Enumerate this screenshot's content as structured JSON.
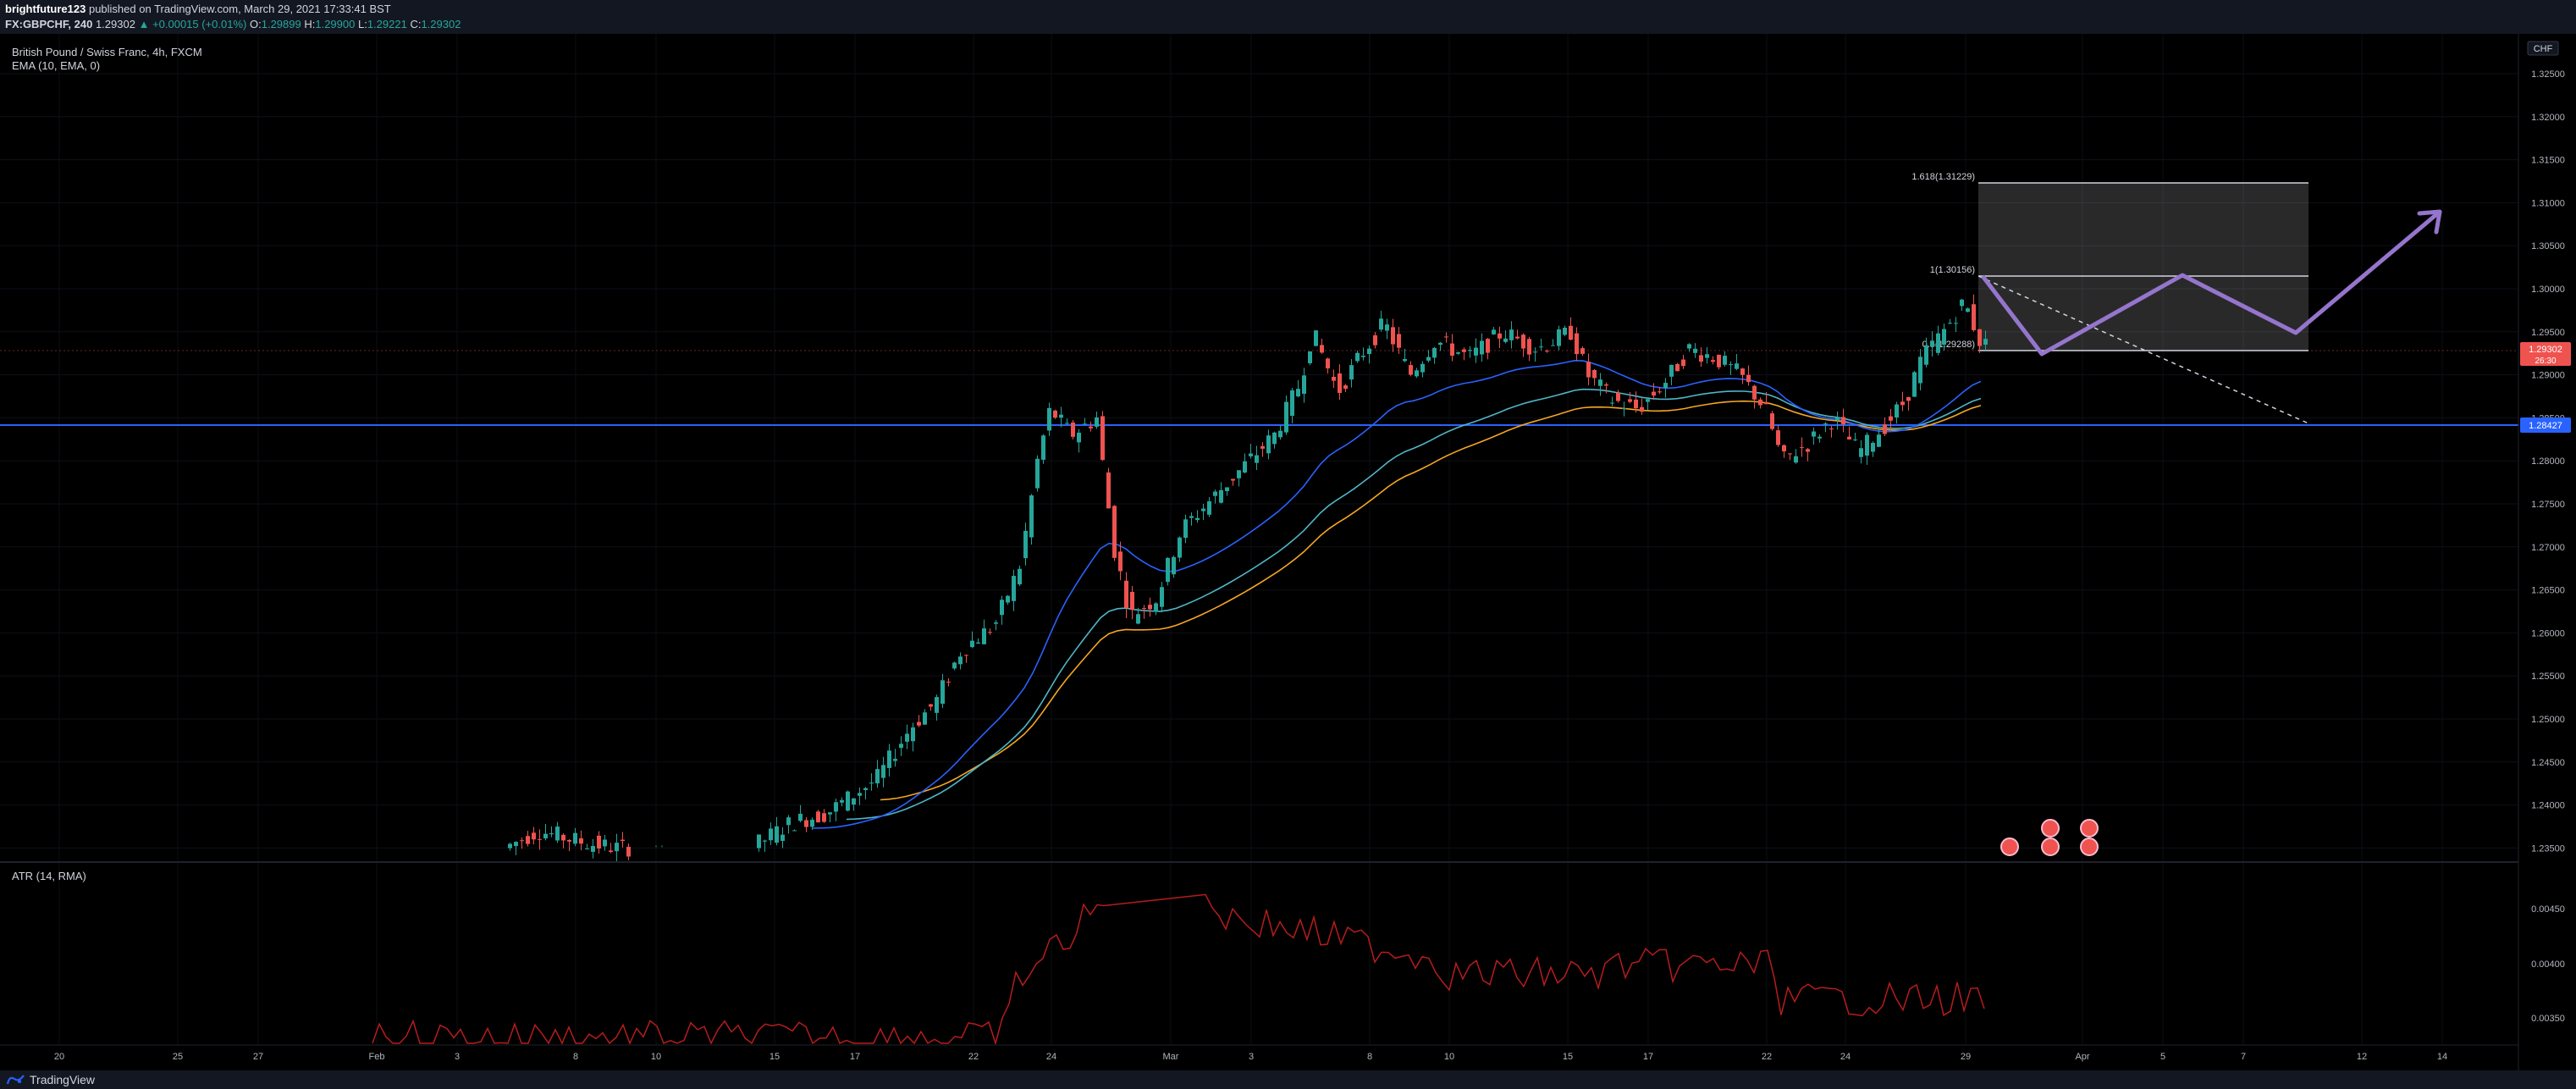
{
  "header": {
    "publisher": "brightfuture123",
    "published_text": "published on TradingView.com, March 29, 2021 17:33:41 BST",
    "symbol": "FX:GBPCHF, 240",
    "last": "1.29302",
    "change": "+0.00015 (+0.01%)",
    "o_label": "O:",
    "o_value": "1.29899",
    "h_label": "H:",
    "h_value": "1.29900",
    "l_label": "L:",
    "l_value": "1.29221",
    "c_label": "C:",
    "c_value": "1.29302"
  },
  "legend": {
    "title": "British Pound / Swiss Franc, 4h, FXCM",
    "ema": "EMA (10, EMA, 0)",
    "atr": "ATR (14, RMA)"
  },
  "price_axis": {
    "currency": "CHF",
    "labels": [
      "1.32500",
      "1.32000",
      "1.31500",
      "1.31000",
      "1.30500",
      "1.30000",
      "1.29500",
      "1.29000",
      "1.28500",
      "1.28000",
      "1.27500",
      "1.27000",
      "1.26500",
      "1.26000",
      "1.25500",
      "1.25000",
      "1.24500",
      "1.24000",
      "1.23500"
    ],
    "current_price": "1.29302",
    "countdown": "26:30",
    "level_price": "1.28427"
  },
  "atr_axis": {
    "labels": [
      "0.00450",
      "0.00400",
      "0.00350"
    ]
  },
  "time_axis": {
    "labels": [
      "20",
      "25",
      "27",
      "Feb",
      "3",
      "8",
      "10",
      "15",
      "17",
      "22",
      "24",
      "Mar",
      "3",
      "8",
      "10",
      "15",
      "17",
      "22",
      "24",
      "29",
      "Apr",
      "5",
      "7",
      "12",
      "14"
    ]
  },
  "fib": {
    "level_1618": "1.618(1.31229)",
    "level_1": "1(1.30156)",
    "level_05": "0.5(1.29288)"
  },
  "colors": {
    "bull": "#26a69a",
    "bear": "#ef5350",
    "ema_blue": "#2962ff",
    "ema_teal": "#4fb6c7",
    "ema_orange": "#f5a623",
    "atr": "#b71c1c",
    "projection": "#9575cd",
    "level": "#2962ff"
  },
  "footer": {
    "brand": "TradingView",
    "logo_icon": "tradingview-logo-icon"
  }
}
